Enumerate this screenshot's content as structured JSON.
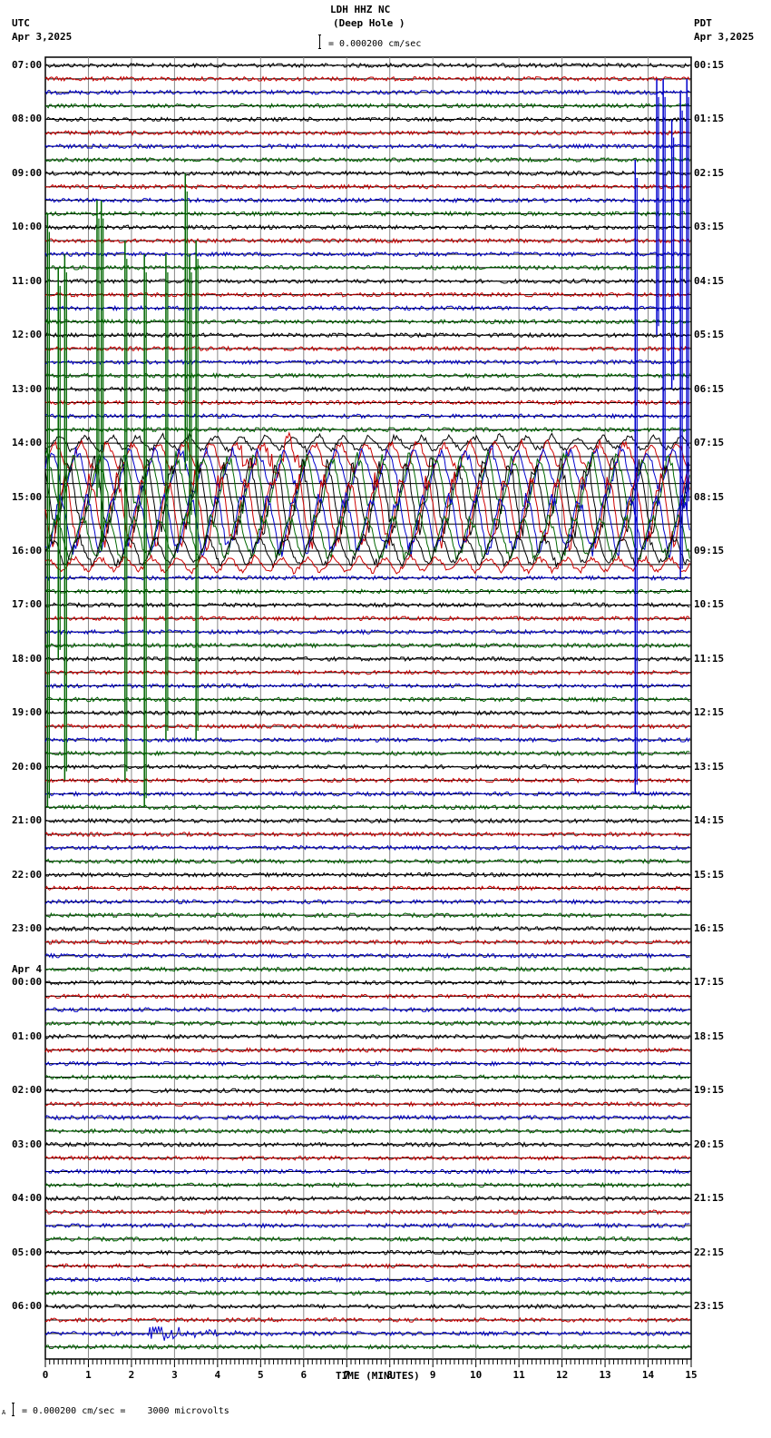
{
  "header": {
    "station": "LDH HHZ NC",
    "location": "(Deep Hole )",
    "left_tz": "UTC",
    "left_date": "Apr 3,2025",
    "right_tz": "PDT",
    "right_date": "Apr 3,2025",
    "scale_text": "= 0.000200 cm/sec"
  },
  "footer": {
    "scale_text": "= 0.000200 cm/sec =    3000 microvolts",
    "prefix": "A"
  },
  "colors": {
    "trace_cycle": [
      "#000000",
      "#cc0000",
      "#0000cc",
      "#006600"
    ],
    "grid": "#888888",
    "axis": "#000000"
  },
  "chart_data": {
    "type": "line",
    "title": "LDH HHZ NC (Deep Hole )",
    "subtitle": "= 0.000200 cm/sec",
    "xlabel": "TIME (MINUTES)",
    "ylabel": "",
    "x_ticks": [
      "0",
      "1",
      "2",
      "3",
      "4",
      "5",
      "6",
      "7",
      "8",
      "9",
      "10",
      "11",
      "12",
      "13",
      "14",
      "15"
    ],
    "xlim": [
      0,
      15
    ],
    "grid": true,
    "traces_per_hour": 4,
    "trace_count": 96,
    "left_labels": [
      "07:00",
      "08:00",
      "09:00",
      "10:00",
      "11:00",
      "12:00",
      "13:00",
      "14:00",
      "15:00",
      "16:00",
      "17:00",
      "18:00",
      "19:00",
      "20:00",
      "21:00",
      "22:00",
      "23:00",
      "00:00",
      "01:00",
      "02:00",
      "03:00",
      "04:00",
      "05:00",
      "06:00"
    ],
    "left_date_change": {
      "label": "Apr 4",
      "before_hour_index": 17
    },
    "right_labels": [
      "00:15",
      "01:15",
      "02:15",
      "03:15",
      "04:15",
      "05:15",
      "06:15",
      "07:15",
      "08:15",
      "09:15",
      "10:15",
      "11:15",
      "12:15",
      "13:15",
      "14:15",
      "15:15",
      "16:15",
      "17:15",
      "18:15",
      "19:15",
      "20:15",
      "21:15",
      "22:15",
      "23:15"
    ],
    "events": [
      {
        "desc": "large teleseismic surface waves",
        "trace_start": 28,
        "trace_end": 38,
        "minutes": [
          0,
          15
        ],
        "amp": 3.2
      },
      {
        "desc": "red high-frequency burst",
        "trace": 29,
        "minutes": [
          4.5,
          6
        ],
        "amp": 1.8
      },
      {
        "desc": "clipped green spikes left",
        "trace_start": 7,
        "trace_end": 55,
        "minutes": [
          0.1,
          3.6
        ],
        "amp": 4
      },
      {
        "desc": "clipped blue spikes right",
        "trace_start": 0,
        "trace_end": 68,
        "minutes": [
          14.2,
          14.9
        ],
        "amp": 4
      },
      {
        "desc": "local event blue",
        "trace": 94,
        "minutes": [
          2.4,
          5.5
        ],
        "amp": 1.0
      }
    ]
  }
}
